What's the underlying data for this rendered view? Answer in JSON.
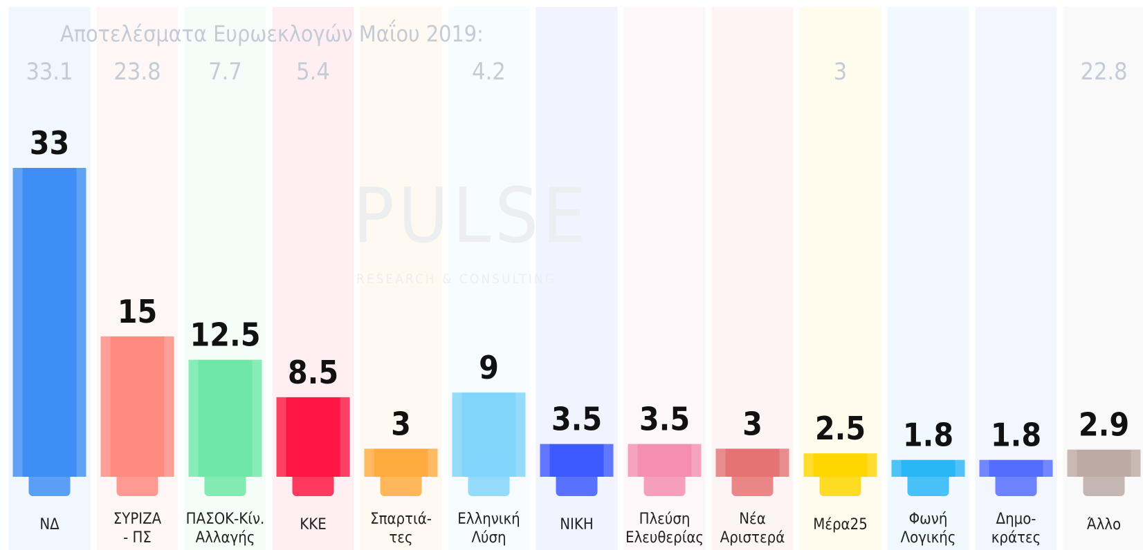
{
  "chart_data": {
    "type": "bar",
    "title": "Αποτελέσματα Ευρωεκλογών Μαΐου 2019:",
    "watermark": [
      "PULSE",
      "RESEARCH & CONSULTING"
    ],
    "categories": [
      [
        "ΝΔ"
      ],
      [
        "ΣΥΡΙΖΑ",
        "- ΠΣ"
      ],
      [
        "ΠΑΣΟΚ-Κίν.",
        "Αλλαγής"
      ],
      [
        "ΚΚΕ"
      ],
      [
        "Σπαρτιά-",
        "τες"
      ],
      [
        "Ελληνική",
        "Λύση"
      ],
      [
        "ΝΙΚΗ"
      ],
      [
        "Πλεύση",
        "Ελευθερίας"
      ],
      [
        "Νέα",
        "Αριστερά"
      ],
      [
        "Μέρα25"
      ],
      [
        "Φωνή",
        "Λογικής"
      ],
      [
        "Δημο-",
        "κράτες"
      ],
      [
        "Άλλο"
      ]
    ],
    "values": [
      33,
      15,
      12.5,
      8.5,
      3,
      9,
      3.5,
      3.5,
      3,
      2.5,
      1.8,
      1.8,
      2.9
    ],
    "previous": [
      33.1,
      23.8,
      7.7,
      5.4,
      null,
      4.2,
      null,
      null,
      null,
      3,
      null,
      null,
      22.8
    ],
    "colors": [
      "#3f8ef5",
      "#ff8a80",
      "#6ee8a6",
      "#ff1744",
      "#ffab40",
      "#81d4fa",
      "#3d5afe",
      "#f48fb1",
      "#e57373",
      "#ffd600",
      "#29b6f6",
      "#536dfe",
      "#bcaaa4"
    ]
  }
}
